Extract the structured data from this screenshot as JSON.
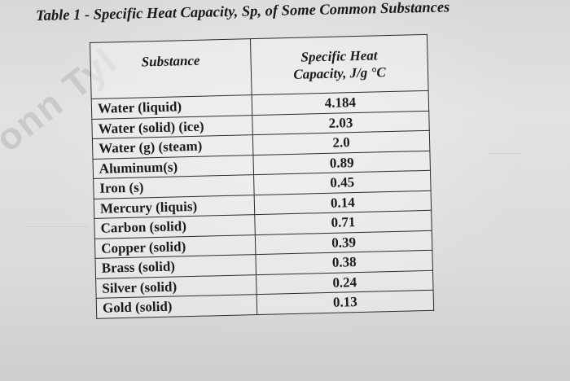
{
  "title": "Table 1 - Specific Heat Capacity, Sp, of Some Common Substances",
  "table": {
    "headers": {
      "substance": "Substance",
      "heat_line1": "Specific Heat",
      "heat_line2": "Capacity, J/g °C"
    },
    "rows": [
      {
        "name": "Water (liquid)",
        "value": "4.184"
      },
      {
        "name": "Water (solid) (ice)",
        "value": "2.03"
      },
      {
        "name": "Water (g) (steam)",
        "value": "2.0"
      },
      {
        "name": "Aluminum(s)",
        "value": "0.89"
      },
      {
        "name": "Iron (s)",
        "value": "0.45"
      },
      {
        "name": "Mercury (liquis)",
        "value": "0.14"
      },
      {
        "name": "Carbon (solid)",
        "value": "0.71"
      },
      {
        "name": "Copper (solid)",
        "value": "0.39"
      },
      {
        "name": "Brass (solid)",
        "value": "0.38"
      },
      {
        "name": "Silver (solid)",
        "value": "0.24"
      },
      {
        "name": "Gold (solid)",
        "value": "0.13"
      }
    ]
  }
}
